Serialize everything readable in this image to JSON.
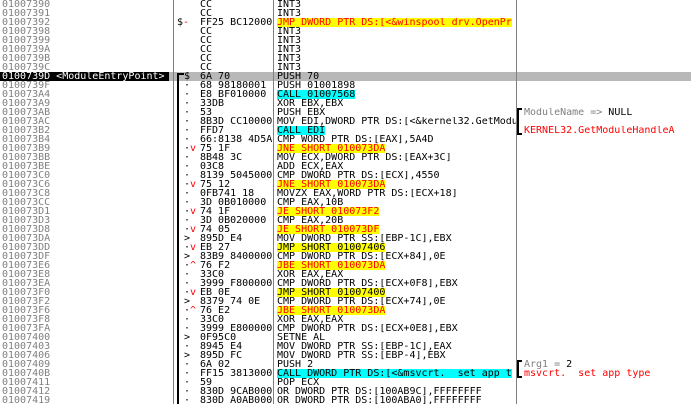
{
  "view": "disassembly",
  "selected_label": "0100739D <ModuleEntryPoint>",
  "colors": {
    "highlight_jump": "#ffff00",
    "highlight_call": "#00ffff",
    "jump_text_red": "#ff0000",
    "comment_red": "#ff0000",
    "comment_gray": "#808080",
    "address_gray": "#808080",
    "selected_row_gray": "#b8b8b8"
  },
  "hint_brackets": [
    {
      "from_row": 13,
      "to_row": 15
    },
    {
      "from_row": 41,
      "to_row": 42
    }
  ],
  "rows": [
    {
      "a": "01007390",
      "hex": "CC",
      "d": "INT3"
    },
    {
      "a": "01007391",
      "hex": "CC",
      "d": "INT3"
    },
    {
      "a": "01007392",
      "mb": "$",
      "mr": "-",
      "mp": 0,
      "hex": "FF25 BC12000",
      "d": "JMP DWORD PTR DS:[<&winspool_drv.OpenPr",
      "hl": "y",
      "dc": "r"
    },
    {
      "a": "01007398",
      "hex": "CC",
      "d": "INT3"
    },
    {
      "a": "01007399",
      "hex": "CC",
      "d": "INT3"
    },
    {
      "a": "0100739A",
      "hex": "CC",
      "d": "INT3"
    },
    {
      "a": "0100739B",
      "hex": "CC",
      "d": "INT3"
    },
    {
      "a": "0100739C",
      "hex": "CC",
      "d": "INT3"
    },
    {
      "a": "0100739D <ModuleEntryPoint>",
      "sel": true,
      "mb": "$",
      "hex": "6A 70",
      "d": "PUSH 70"
    },
    {
      "a": "0100739F",
      "mb": "·",
      "hex": "68 98180001",
      "d": "PUSH 01001898"
    },
    {
      "a": "010073A4",
      "mb": "·",
      "hex": "E8 BF010000",
      "d": "CALL 01007568",
      "hl": "c"
    },
    {
      "a": "010073A9",
      "mb": "·",
      "hex": "33DB",
      "d": "XOR EBX,EBX"
    },
    {
      "a": "010073AB",
      "mb": "·",
      "hex": "53",
      "d": "PUSH EBX",
      "cm": [
        {
          "t": "ModuleName => ",
          "c": "g"
        },
        {
          "t": "NULL",
          "c": "k"
        }
      ]
    },
    {
      "a": "010073AC",
      "mb": "·",
      "hex": "8B3D CC10000",
      "d": "MOV EDI,DWORD PTR DS:[<&kernel32.GetModu"
    },
    {
      "a": "010073B2",
      "mb": "·",
      "hex": "FFD7",
      "d": "CALL EDI",
      "hl": "c",
      "cm": [
        {
          "t": "KERNEL32.GetModuleHandleA",
          "c": "r"
        }
      ]
    },
    {
      "a": "010073B4",
      "mb": "·",
      "hex": "66:8138 4D5A",
      "d": "CMP WORD PTR DS:[EAX],5A4D"
    },
    {
      "a": "010073B9",
      "mb": "·",
      "mr": "v",
      "hex": "75 1F",
      "d": "JNE SHORT 010073DA",
      "hl": "y",
      "dc": "r"
    },
    {
      "a": "010073BB",
      "mb": "·",
      "hex": "8B48 3C",
      "d": "MOV ECX,DWORD PTR DS:[EAX+3C]"
    },
    {
      "a": "010073BE",
      "mb": "·",
      "hex": "03C8",
      "d": "ADD ECX,EAX"
    },
    {
      "a": "010073C0",
      "mb": "·",
      "hex": "8139 5045000",
      "d": "CMP DWORD PTR DS:[ECX],4550"
    },
    {
      "a": "010073C6",
      "mb": "·",
      "mr": "v",
      "hex": "75 12",
      "d": "JNE SHORT 010073DA",
      "hl": "y",
      "dc": "r"
    },
    {
      "a": "010073C8",
      "mb": "·",
      "hex": "0FB741 18",
      "d": "MOVZX EAX,WORD PTR DS:[ECX+18]"
    },
    {
      "a": "010073CC",
      "mb": "·",
      "hex": "3D 0B010000",
      "d": "CMP EAX,10B"
    },
    {
      "a": "010073D1",
      "mb": "·",
      "mr": "v",
      "hex": "74 1F",
      "d": "JE SHORT 010073F2",
      "hl": "y",
      "dc": "r"
    },
    {
      "a": "010073D3",
      "mb": "·",
      "hex": "3D 0B020000",
      "d": "CMP EAX,20B"
    },
    {
      "a": "010073D8",
      "mb": "·",
      "mr": "v",
      "hex": "74 05",
      "d": "JE SHORT 010073DF",
      "hl": "y",
      "dc": "r"
    },
    {
      "a": "010073DA",
      "mb": ">",
      "hex": "895D E4",
      "d": "MOV DWORD PTR SS:[EBP-1C],EBX"
    },
    {
      "a": "010073DD",
      "mb": "·",
      "mr": "v",
      "hex": "EB 27",
      "d": "JMP SHORT 01007406",
      "hl": "y"
    },
    {
      "a": "010073DF",
      "mb": ">",
      "hex": "83B9 8400000",
      "d": "CMP DWORD PTR DS:[ECX+84],0E"
    },
    {
      "a": "010073E6",
      "mb": "·",
      "mr": "^",
      "hex": "76 F2",
      "d": "JBE SHORT 010073DA",
      "hl": "y",
      "dc": "r"
    },
    {
      "a": "010073E8",
      "mb": "·",
      "hex": "33C0",
      "d": "XOR EAX,EAX"
    },
    {
      "a": "010073EA",
      "mb": "·",
      "hex": "3999 F800000",
      "d": "CMP DWORD PTR DS:[ECX+0F8],EBX"
    },
    {
      "a": "010073F0",
      "mb": "·",
      "mr": "v",
      "hex": "EB 0E",
      "d": "JMP SHORT 01007400",
      "hl": "y"
    },
    {
      "a": "010073F2",
      "mb": ">",
      "hex": "8379 74 0E",
      "d": "CMP DWORD PTR DS:[ECX+74],0E"
    },
    {
      "a": "010073F6",
      "mb": "·",
      "mr": "^",
      "hex": "76 E2",
      "d": "JBE SHORT 010073DA",
      "hl": "y",
      "dc": "r"
    },
    {
      "a": "010073F8",
      "mb": "·",
      "hex": "33C0",
      "d": "XOR EAX,EAX"
    },
    {
      "a": "010073FA",
      "mb": "·",
      "hex": "3999 E800000",
      "d": "CMP DWORD PTR DS:[ECX+0E8],EBX"
    },
    {
      "a": "01007400",
      "mb": ">",
      "hex": "0F95C0",
      "d": "SETNE AL"
    },
    {
      "a": "01007403",
      "mb": "·",
      "hex": "8945 E4",
      "d": "MOV DWORD PTR SS:[EBP-1C],EAX"
    },
    {
      "a": "01007406",
      "mb": ">",
      "hex": "895D FC",
      "d": "MOV DWORD PTR SS:[EBP-4],EBX"
    },
    {
      "a": "01007409",
      "mb": "·",
      "hex": "6A 02",
      "d": "PUSH 2",
      "cm": [
        {
          "t": "Arg1 = ",
          "c": "g"
        },
        {
          "t": "2",
          "c": "k"
        }
      ]
    },
    {
      "a": "0100740B",
      "mb": "·",
      "hex": "FF15 3813000",
      "d": "CALL DWORD PTR DS:[<&msvcrt.__set_app_t",
      "hl": "c",
      "cm": [
        {
          "t": "msvcrt.__set_app_type",
          "c": "r"
        }
      ]
    },
    {
      "a": "01007411",
      "mb": "·",
      "hex": "59",
      "d": "POP ECX"
    },
    {
      "a": "01007412",
      "mb": "·",
      "hex": "830D 9CAB000",
      "d": "OR DWORD PTR DS:[100AB9C],FFFFFFFF"
    },
    {
      "a": "01007419",
      "mb": "·",
      "hex": "830D A0AB000",
      "d": "OR DWORD PTR DS:[100ABA0],FFFFFFFF"
    }
  ]
}
